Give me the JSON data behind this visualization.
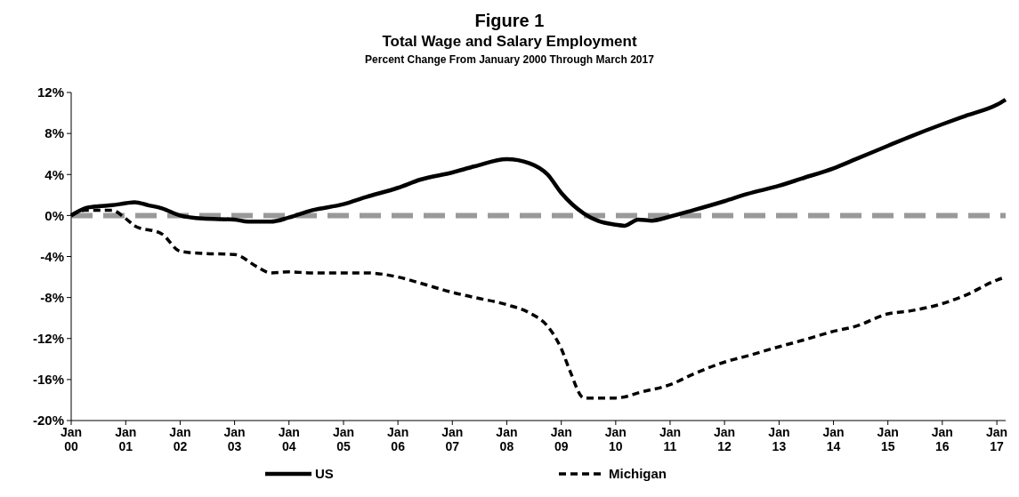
{
  "chart_data": {
    "type": "line",
    "title": "Figure 1",
    "subtitle": "Total Wage and Salary Employment",
    "annotations": [
      "Percent Change From January 2000 Through March 2017"
    ],
    "xlim": [
      "2000-01",
      "2017-03"
    ],
    "xticks": [
      {
        "value": "2000-01",
        "label": "Jan 00"
      },
      {
        "value": "2001-01",
        "label": "Jan 01"
      },
      {
        "value": "2002-01",
        "label": "Jan 02"
      },
      {
        "value": "2003-01",
        "label": "Jan 03"
      },
      {
        "value": "2004-01",
        "label": "Jan 04"
      },
      {
        "value": "2005-01",
        "label": "Jan 05"
      },
      {
        "value": "2006-01",
        "label": "Jan 06"
      },
      {
        "value": "2007-01",
        "label": "Jan 07"
      },
      {
        "value": "2008-01",
        "label": "Jan 08"
      },
      {
        "value": "2009-01",
        "label": "Jan 09"
      },
      {
        "value": "2010-01",
        "label": "Jan 10"
      },
      {
        "value": "2011-01",
        "label": "Jan 11"
      },
      {
        "value": "2012-01",
        "label": "Jan 12"
      },
      {
        "value": "2013-01",
        "label": "Jan 13"
      },
      {
        "value": "2014-01",
        "label": "Jan 14"
      },
      {
        "value": "2015-01",
        "label": "Jan 15"
      },
      {
        "value": "2016-01",
        "label": "Jan 16"
      },
      {
        "value": "2017-01",
        "label": "Jan 17"
      }
    ],
    "ylim": [
      -20,
      12
    ],
    "yticks": [
      {
        "value": -20,
        "label": "-20%"
      },
      {
        "value": -16,
        "label": "-16%"
      },
      {
        "value": -12,
        "label": "-12%"
      },
      {
        "value": -8,
        "label": "-8%"
      },
      {
        "value": -4,
        "label": "-4%"
      },
      {
        "value": 0,
        "label": "0%"
      },
      {
        "value": 4,
        "label": "4%"
      },
      {
        "value": 8,
        "label": "8%"
      },
      {
        "value": 12,
        "label": "12%"
      }
    ],
    "ref_lines": [
      {
        "axis": "y",
        "value": 0,
        "color": "#999999",
        "line_style": "dashed"
      }
    ],
    "legend": "bottom",
    "grid": false,
    "series": [
      {
        "name": "US",
        "color": "#000000",
        "line_style": "solid",
        "x": [
          "2000-01",
          "2000-04",
          "2000-07",
          "2000-10",
          "2001-01",
          "2001-03",
          "2001-06",
          "2001-09",
          "2002-01",
          "2002-06",
          "2003-01",
          "2003-04",
          "2003-09",
          "2004-01",
          "2004-06",
          "2005-01",
          "2005-06",
          "2006-01",
          "2006-06",
          "2007-01",
          "2007-06",
          "2008-01",
          "2008-06",
          "2008-10",
          "2009-01",
          "2009-06",
          "2009-09",
          "2010-01",
          "2010-03",
          "2010-06",
          "2010-09",
          "2011-01",
          "2011-06",
          "2012-01",
          "2012-06",
          "2013-01",
          "2013-06",
          "2014-01",
          "2014-06",
          "2015-01",
          "2015-06",
          "2016-01",
          "2016-06",
          "2017-01",
          "2017-03"
        ],
        "values": [
          0,
          0.7,
          0.9,
          1.0,
          1.2,
          1.3,
          1.0,
          0.7,
          0.0,
          -0.3,
          -0.4,
          -0.6,
          -0.6,
          -0.2,
          0.5,
          1.1,
          1.8,
          2.7,
          3.5,
          4.2,
          4.8,
          5.5,
          5.1,
          4.0,
          2.2,
          0.2,
          -0.5,
          -0.9,
          -1.0,
          -0.4,
          -0.5,
          -0.1,
          0.5,
          1.4,
          2.1,
          2.9,
          3.6,
          4.6,
          5.5,
          6.8,
          7.7,
          8.9,
          9.7,
          10.8,
          11.3
        ]
      },
      {
        "name": "Michigan",
        "color": "#000000",
        "line_style": "dashed",
        "x": [
          "2000-01",
          "2000-04",
          "2000-10",
          "2001-01",
          "2001-03",
          "2001-09",
          "2002-01",
          "2002-06",
          "2003-01",
          "2003-06",
          "2003-09",
          "2004-01",
          "2004-06",
          "2005-01",
          "2005-06",
          "2006-01",
          "2006-06",
          "2007-01",
          "2007-06",
          "2008-01",
          "2008-06",
          "2008-10",
          "2009-01",
          "2009-03",
          "2009-06",
          "2010-01",
          "2010-03",
          "2010-06",
          "2011-01",
          "2011-06",
          "2012-01",
          "2012-06",
          "2013-01",
          "2013-06",
          "2014-01",
          "2014-06",
          "2015-01",
          "2015-06",
          "2016-01",
          "2016-06",
          "2017-01",
          "2017-03"
        ],
        "values": [
          0,
          0.5,
          0.5,
          -0.3,
          -1.0,
          -1.8,
          -3.5,
          -3.7,
          -3.8,
          -5.0,
          -5.6,
          -5.5,
          -5.6,
          -5.6,
          -5.6,
          -6.0,
          -6.6,
          -7.5,
          -8.0,
          -8.7,
          -9.5,
          -10.8,
          -13.0,
          -15.2,
          -17.8,
          -17.8,
          -17.7,
          -17.3,
          -16.5,
          -15.5,
          -14.3,
          -13.7,
          -12.8,
          -12.2,
          -11.3,
          -10.8,
          -9.6,
          -9.3,
          -8.6,
          -7.8,
          -6.3,
          -6.0
        ]
      }
    ]
  }
}
